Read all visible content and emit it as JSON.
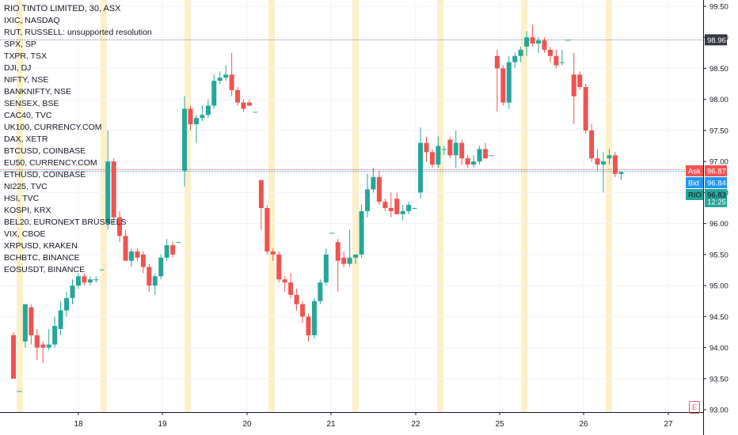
{
  "legend": {
    "title": "RIO TINTO LIMITED, 30, ASX",
    "symbols": [
      "IXIC, NASDAQ",
      "RUT, RUSSELL: unsupported resolution",
      "SPX, SP",
      "TXPR, TSX",
      "DJI, DJ",
      "NIFTY, NSE",
      "BANKNIFTY, NSE",
      "SENSEX, BSE",
      "CAC40, TVC",
      "UK100, CURRENCY.COM",
      "DAX, XETR",
      "BTCUSD, COINBASE",
      "EU50, CURRENCY.COM",
      "ETHUSD, COINBASE",
      "NI225, TVC",
      "HSI, TVC",
      "KOSPI, KRX",
      "BEL20, EURONEXT BRUSSELS",
      "VIX, CBOE",
      "XRPUSD, KRAKEN",
      "BCHBTC, BINANCE",
      "EOSUSDT, BINANCE"
    ]
  },
  "price_tags": {
    "level_label": "98.96",
    "ask_label": "Ask",
    "ask_value": "96.87",
    "bid_label": "Bid",
    "bid_value": "96.84",
    "symbol_label": "RIO",
    "last_value": "96.83",
    "countdown": "12:25"
  },
  "e_badge": "E",
  "colors": {
    "up": "#26a69a",
    "down": "#ef5350",
    "session_band": "#fdf0c8",
    "ask": "#ef5350",
    "bid": "#2196f3",
    "last": "#26a69a",
    "level_tag": "#363a45"
  },
  "chart_data": {
    "type": "candlestick",
    "y_axis_ticks": [
      "99.50",
      "99.00",
      "98.50",
      "98.00",
      "97.50",
      "97.00",
      "96.50",
      "96.00",
      "95.50",
      "95.00",
      "94.50",
      "94.00",
      "93.50",
      "93.00"
    ],
    "ylim": [
      93.0,
      99.5
    ],
    "x_axis_ticks": [
      "18",
      "19",
      "20",
      "21",
      "22",
      "25",
      "26",
      "27"
    ],
    "horizontal_levels": [
      98.96,
      96.87,
      96.84
    ],
    "candles": [
      {
        "o": 94.2,
        "h": 94.25,
        "l": 93.5,
        "c": 93.5
      },
      {
        "o": 93.3,
        "h": 93.3,
        "l": 93.3,
        "c": 93.3
      },
      {
        "o": 94.1,
        "h": 94.7,
        "l": 94.0,
        "c": 94.7
      },
      {
        "o": 94.65,
        "h": 94.7,
        "l": 94.05,
        "c": 94.2
      },
      {
        "o": 94.2,
        "h": 94.3,
        "l": 93.8,
        "c": 94.0
      },
      {
        "o": 94.05,
        "h": 94.1,
        "l": 93.75,
        "c": 94.0
      },
      {
        "o": 94.0,
        "h": 94.3,
        "l": 93.95,
        "c": 94.05
      },
      {
        "o": 94.05,
        "h": 94.5,
        "l": 94.0,
        "c": 94.35
      },
      {
        "o": 94.3,
        "h": 94.75,
        "l": 94.2,
        "c": 94.6
      },
      {
        "o": 94.6,
        "h": 94.9,
        "l": 94.5,
        "c": 94.8
      },
      {
        "o": 94.8,
        "h": 95.1,
        "l": 94.7,
        "c": 95.0
      },
      {
        "o": 95.0,
        "h": 95.2,
        "l": 94.95,
        "c": 95.15
      },
      {
        "o": 95.15,
        "h": 95.2,
        "l": 95.0,
        "c": 95.05
      },
      {
        "o": 95.05,
        "h": 95.15,
        "l": 95.0,
        "c": 95.1
      },
      {
        "o": 95.1,
        "h": 95.15,
        "l": 95.05,
        "c": 95.1
      },
      {
        "o": 95.26,
        "h": 95.26,
        "l": 95.26,
        "c": 95.26
      },
      {
        "o": 96.0,
        "h": 97.5,
        "l": 95.9,
        "c": 97.0
      },
      {
        "o": 97.0,
        "h": 97.05,
        "l": 96.0,
        "c": 96.1
      },
      {
        "o": 96.1,
        "h": 96.2,
        "l": 95.7,
        "c": 95.8
      },
      {
        "o": 95.8,
        "h": 95.9,
        "l": 95.4,
        "c": 95.4
      },
      {
        "o": 95.4,
        "h": 95.6,
        "l": 95.3,
        "c": 95.55
      },
      {
        "o": 95.55,
        "h": 95.6,
        "l": 95.4,
        "c": 95.45
      },
      {
        "o": 95.5,
        "h": 95.55,
        "l": 95.2,
        "c": 95.3
      },
      {
        "o": 95.3,
        "h": 95.35,
        "l": 94.9,
        "c": 95.0
      },
      {
        "o": 95.0,
        "h": 95.2,
        "l": 94.85,
        "c": 95.15
      },
      {
        "o": 95.15,
        "h": 95.5,
        "l": 95.1,
        "c": 95.45
      },
      {
        "o": 95.45,
        "h": 95.75,
        "l": 95.4,
        "c": 95.65
      },
      {
        "o": 95.65,
        "h": 95.7,
        "l": 95.45,
        "c": 95.5
      },
      {
        "o": 95.7,
        "h": 95.7,
        "l": 95.7,
        "c": 95.7
      },
      {
        "o": 96.85,
        "h": 98.05,
        "l": 96.6,
        "c": 97.85
      },
      {
        "o": 97.85,
        "h": 97.9,
        "l": 97.5,
        "c": 97.6
      },
      {
        "o": 97.6,
        "h": 97.75,
        "l": 97.3,
        "c": 97.7
      },
      {
        "o": 97.7,
        "h": 97.9,
        "l": 97.65,
        "c": 97.75
      },
      {
        "o": 97.75,
        "h": 98.0,
        "l": 97.7,
        "c": 97.9
      },
      {
        "o": 97.9,
        "h": 98.4,
        "l": 97.85,
        "c": 98.3
      },
      {
        "o": 98.3,
        "h": 98.45,
        "l": 98.25,
        "c": 98.35
      },
      {
        "o": 98.35,
        "h": 98.55,
        "l": 98.3,
        "c": 98.4
      },
      {
        "o": 98.4,
        "h": 98.75,
        "l": 98.05,
        "c": 98.15
      },
      {
        "o": 98.15,
        "h": 98.2,
        "l": 97.9,
        "c": 97.95
      },
      {
        "o": 97.95,
        "h": 98.0,
        "l": 97.8,
        "c": 97.85
      },
      {
        "o": 97.95,
        "h": 98.0,
        "l": 97.9,
        "c": 97.9
      },
      {
        "o": 97.8,
        "h": 97.8,
        "l": 97.8,
        "c": 97.8
      },
      {
        "o": 96.7,
        "h": 96.7,
        "l": 95.9,
        "c": 96.25
      },
      {
        "o": 96.25,
        "h": 96.3,
        "l": 95.5,
        "c": 95.55
      },
      {
        "o": 95.55,
        "h": 95.6,
        "l": 95.4,
        "c": 95.5
      },
      {
        "o": 95.5,
        "h": 95.55,
        "l": 95.05,
        "c": 95.1
      },
      {
        "o": 95.1,
        "h": 95.15,
        "l": 94.9,
        "c": 95.05
      },
      {
        "o": 95.05,
        "h": 95.2,
        "l": 94.8,
        "c": 94.85
      },
      {
        "o": 94.85,
        "h": 94.95,
        "l": 94.6,
        "c": 94.7
      },
      {
        "o": 94.7,
        "h": 94.75,
        "l": 94.4,
        "c": 94.5
      },
      {
        "o": 94.5,
        "h": 94.55,
        "l": 94.1,
        "c": 94.2
      },
      {
        "o": 94.2,
        "h": 94.8,
        "l": 94.15,
        "c": 94.75
      },
      {
        "o": 94.75,
        "h": 95.1,
        "l": 94.7,
        "c": 95.05
      },
      {
        "o": 95.05,
        "h": 95.6,
        "l": 95.0,
        "c": 95.5
      },
      {
        "o": 95.85,
        "h": 95.85,
        "l": 95.85,
        "c": 95.85
      },
      {
        "o": 95.7,
        "h": 95.75,
        "l": 94.9,
        "c": 95.4
      },
      {
        "o": 95.45,
        "h": 95.55,
        "l": 95.3,
        "c": 95.35
      },
      {
        "o": 95.35,
        "h": 95.9,
        "l": 95.3,
        "c": 95.45
      },
      {
        "o": 95.45,
        "h": 95.5,
        "l": 95.35,
        "c": 95.5
      },
      {
        "o": 95.5,
        "h": 96.3,
        "l": 95.45,
        "c": 96.2
      },
      {
        "o": 96.2,
        "h": 96.8,
        "l": 96.1,
        "c": 96.55
      },
      {
        "o": 96.55,
        "h": 96.9,
        "l": 96.5,
        "c": 96.75
      },
      {
        "o": 96.75,
        "h": 96.85,
        "l": 96.3,
        "c": 96.35
      },
      {
        "o": 96.35,
        "h": 96.4,
        "l": 96.2,
        "c": 96.25
      },
      {
        "o": 96.25,
        "h": 96.5,
        "l": 96.1,
        "c": 96.2
      },
      {
        "o": 96.4,
        "h": 96.5,
        "l": 96.15,
        "c": 96.15
      },
      {
        "o": 96.15,
        "h": 96.3,
        "l": 96.05,
        "c": 96.2
      },
      {
        "o": 96.2,
        "h": 96.35,
        "l": 96.15,
        "c": 96.3
      },
      {
        "o": 96.25,
        "h": 96.25,
        "l": 96.25,
        "c": 96.25
      },
      {
        "o": 96.5,
        "h": 97.55,
        "l": 96.4,
        "c": 97.3
      },
      {
        "o": 97.3,
        "h": 97.4,
        "l": 97.0,
        "c": 97.15
      },
      {
        "o": 97.15,
        "h": 97.2,
        "l": 96.9,
        "c": 96.95
      },
      {
        "o": 96.95,
        "h": 97.4,
        "l": 96.9,
        "c": 97.25
      },
      {
        "o": 97.2,
        "h": 97.25,
        "l": 97.1,
        "c": 97.2
      },
      {
        "o": 97.35,
        "h": 97.4,
        "l": 97.05,
        "c": 97.1
      },
      {
        "o": 97.1,
        "h": 97.5,
        "l": 96.9,
        "c": 97.3
      },
      {
        "o": 97.3,
        "h": 97.35,
        "l": 96.95,
        "c": 97.05
      },
      {
        "o": 97.05,
        "h": 97.1,
        "l": 96.9,
        "c": 96.95
      },
      {
        "o": 96.95,
        "h": 97.1,
        "l": 96.9,
        "c": 97.0
      },
      {
        "o": 97.0,
        "h": 97.25,
        "l": 96.95,
        "c": 97.2
      },
      {
        "o": 97.2,
        "h": 97.3,
        "l": 97.05,
        "c": 97.05
      },
      {
        "o": 97.1,
        "h": 97.1,
        "l": 97.1,
        "c": 97.1
      },
      {
        "o": 98.7,
        "h": 98.8,
        "l": 97.8,
        "c": 98.5
      },
      {
        "o": 98.5,
        "h": 98.55,
        "l": 97.9,
        "c": 97.95
      },
      {
        "o": 97.95,
        "h": 98.7,
        "l": 97.85,
        "c": 98.6
      },
      {
        "o": 98.6,
        "h": 98.75,
        "l": 98.5,
        "c": 98.7
      },
      {
        "o": 98.7,
        "h": 98.85,
        "l": 98.6,
        "c": 98.8
      },
      {
        "o": 98.85,
        "h": 99.1,
        "l": 98.7,
        "c": 99.0
      },
      {
        "o": 99.0,
        "h": 99.2,
        "l": 98.85,
        "c": 98.9
      },
      {
        "o": 98.9,
        "h": 99.0,
        "l": 98.75,
        "c": 98.95
      },
      {
        "o": 98.95,
        "h": 99.0,
        "l": 98.75,
        "c": 98.8
      },
      {
        "o": 98.8,
        "h": 98.85,
        "l": 98.6,
        "c": 98.7
      },
      {
        "o": 98.7,
        "h": 98.8,
        "l": 98.5,
        "c": 98.55
      },
      {
        "o": 98.6,
        "h": 98.8,
        "l": 98.55,
        "c": 98.6
      },
      {
        "o": 98.96,
        "h": 98.96,
        "l": 98.96,
        "c": 98.96
      },
      {
        "o": 98.4,
        "h": 98.75,
        "l": 97.6,
        "c": 98.05
      },
      {
        "o": 98.4,
        "h": 98.45,
        "l": 98.15,
        "c": 98.2
      },
      {
        "o": 98.2,
        "h": 98.25,
        "l": 97.45,
        "c": 97.5
      },
      {
        "o": 97.5,
        "h": 97.6,
        "l": 97.0,
        "c": 97.05
      },
      {
        "o": 97.05,
        "h": 97.2,
        "l": 96.85,
        "c": 96.95
      },
      {
        "o": 96.95,
        "h": 97.15,
        "l": 96.5,
        "c": 97.0
      },
      {
        "o": 97.05,
        "h": 97.2,
        "l": 96.95,
        "c": 97.1
      },
      {
        "o": 97.1,
        "h": 97.15,
        "l": 96.75,
        "c": 96.8
      },
      {
        "o": 96.8,
        "h": 96.85,
        "l": 96.7,
        "c": 96.83
      }
    ]
  }
}
